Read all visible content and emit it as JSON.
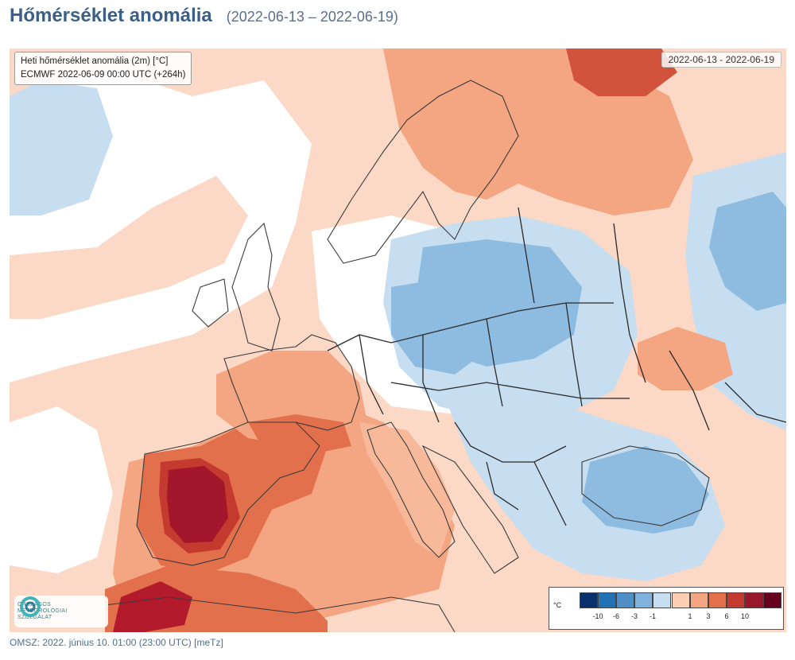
{
  "page": {
    "title": "Hőmérséklet anomália",
    "period": "(2022-06-13 – 2022-06-19)"
  },
  "map": {
    "info_line1": "Heti hőmérséklet anomália (2m) [°C]",
    "info_line2": "ECMWF 2022-06-09 00:00 UTC (+264h)",
    "date_range": "2022-06-13 - 2022-06-19",
    "logo_text": [
      "ORSZÁGOS",
      "METEOROLÓGIAI",
      "SZOLGÁLAT"
    ]
  },
  "legend": {
    "unit": "°C",
    "cold_ticks": [
      "-10",
      "-6",
      "-3",
      "-1"
    ],
    "warm_ticks": [
      "1",
      "3",
      "6",
      "10"
    ],
    "cold_colors": [
      "#08306b",
      "#2171b5",
      "#4f8fc6",
      "#7fb2dc",
      "#c7ddf0"
    ],
    "warm_colors": [
      "#fdd0b5",
      "#f4a582",
      "#e2704d",
      "#c43a2e",
      "#99172b",
      "#67001f"
    ]
  },
  "footer": {
    "text": "OMSZ: 2022. június 10. 01:00 (23:00  UTC)  [meTz]"
  }
}
